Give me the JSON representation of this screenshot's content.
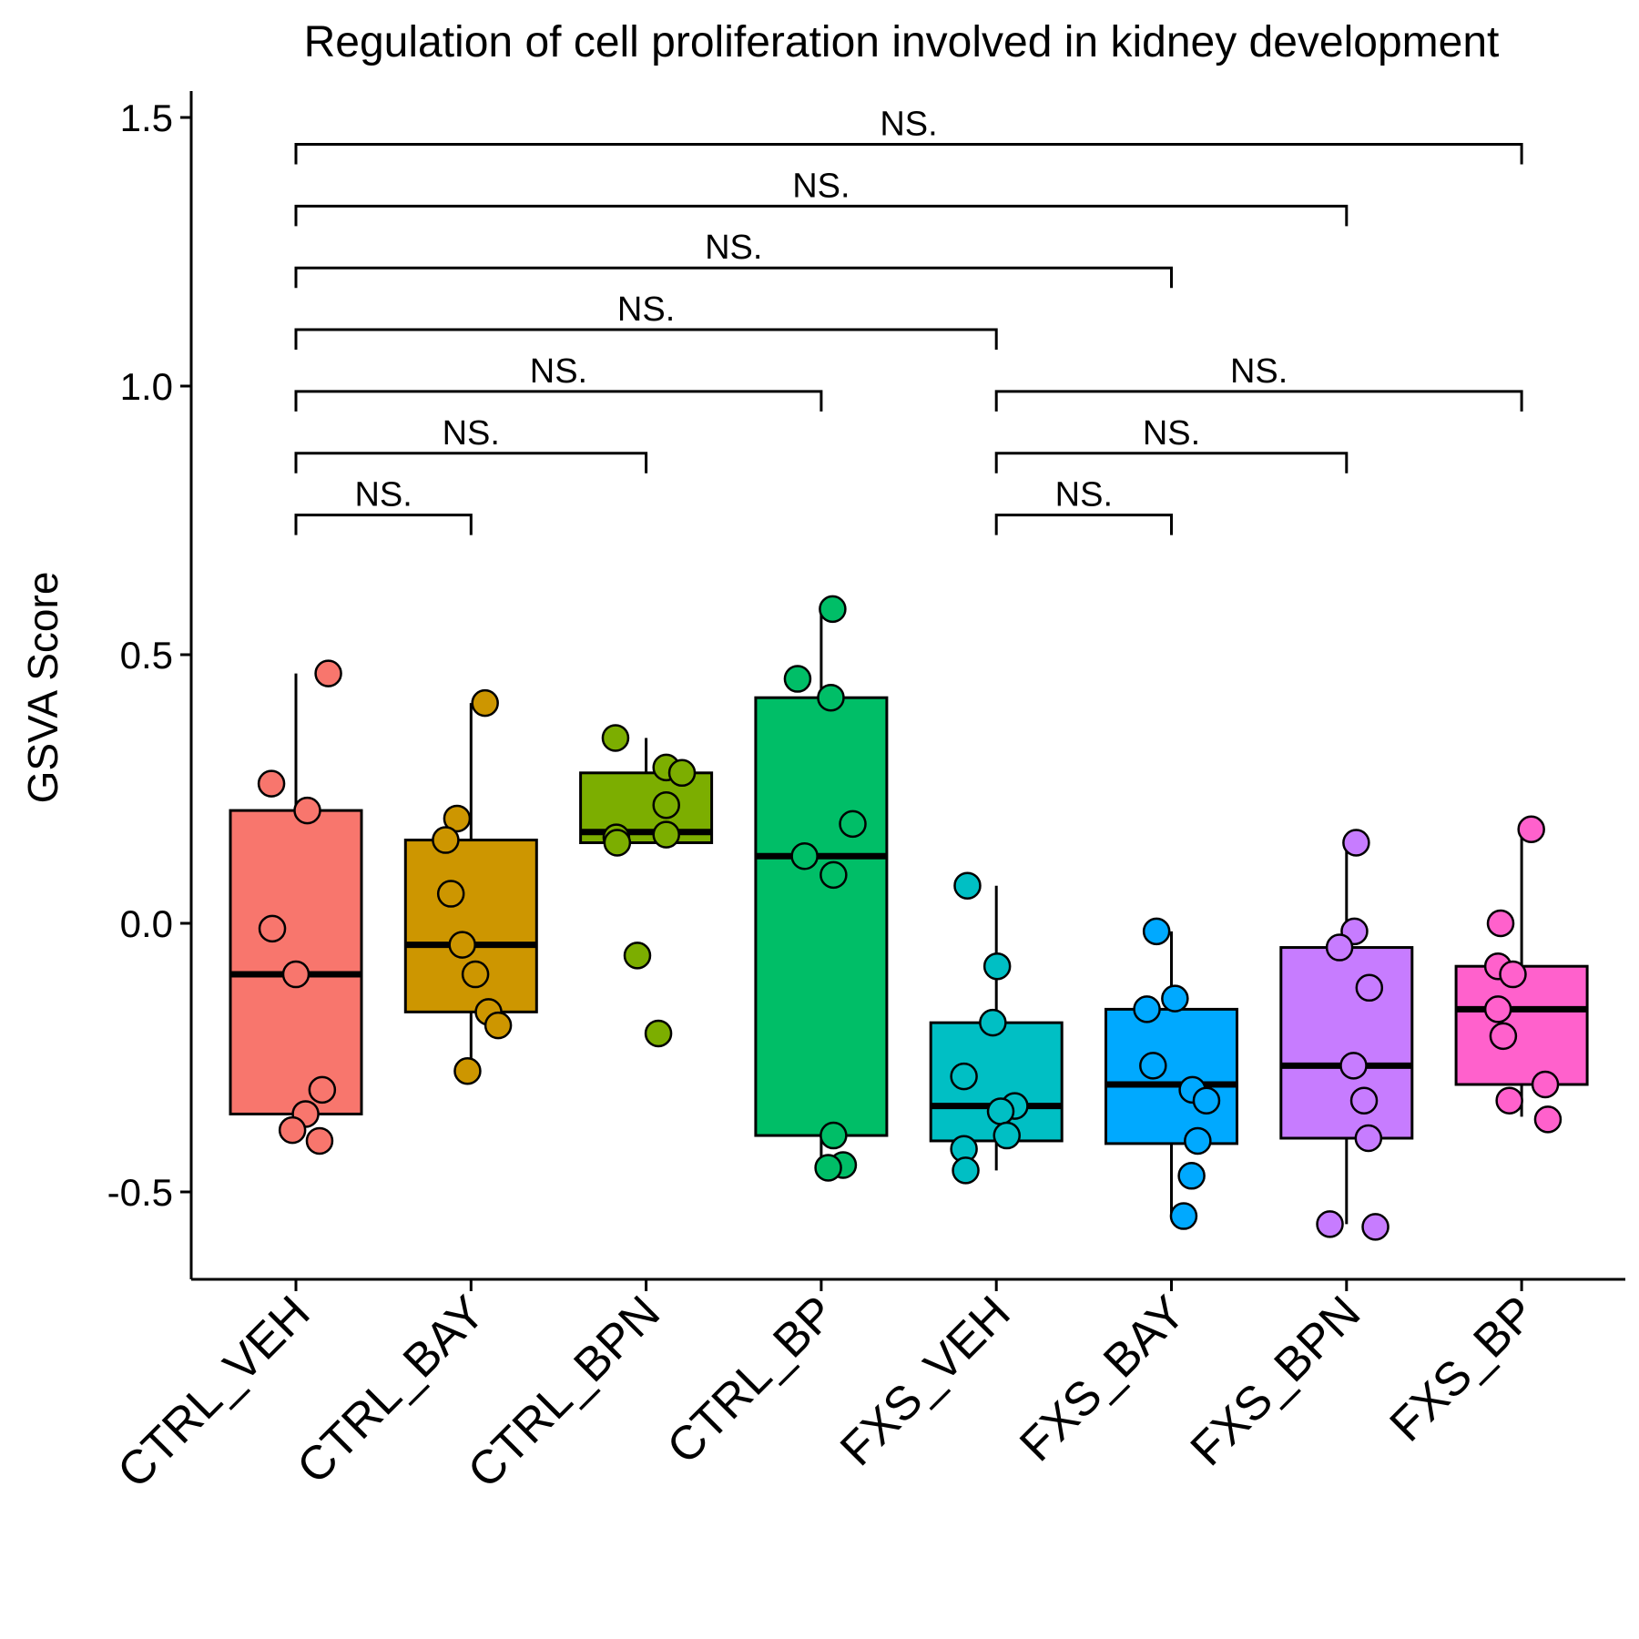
{
  "chart_data": {
    "type": "box",
    "title": "Regulation of cell proliferation involved in kidney development",
    "xlabel": "",
    "ylabel": "GSVA Score",
    "ylim": [
      -0.65,
      1.55
    ],
    "yticks": [
      -0.5,
      0.0,
      0.5,
      1.0,
      1.5
    ],
    "ytick_labels": [
      "-0.5",
      "0.0",
      "0.5",
      "1.0",
      "1.5"
    ],
    "grid": false,
    "legend": "none",
    "categories": [
      "CTRL_VEH",
      "CTRL_BAY",
      "CTRL_BPN",
      "CTRL_BP",
      "FXS_VEH",
      "FXS_BAY",
      "FXS_BPN",
      "FXS_BP"
    ],
    "colors": [
      "#F8766D",
      "#CD9600",
      "#7CAE00",
      "#00BE67",
      "#00BFC4",
      "#00A9FF",
      "#C77CFF",
      "#FF61CC"
    ],
    "boxes": [
      {
        "q1": -0.355,
        "median": -0.095,
        "q3": 0.21,
        "whisker_low": -0.355,
        "whisker_high": 0.465
      },
      {
        "q1": -0.165,
        "median": -0.04,
        "q3": 0.155,
        "whisker_low": -0.275,
        "whisker_high": 0.41
      },
      {
        "q1": 0.15,
        "median": 0.17,
        "q3": 0.28,
        "whisker_low": 0.15,
        "whisker_high": 0.345
      },
      {
        "q1": -0.395,
        "median": 0.125,
        "q3": 0.42,
        "whisker_low": -0.455,
        "whisker_high": 0.585
      },
      {
        "q1": -0.405,
        "median": -0.34,
        "q3": -0.185,
        "whisker_low": -0.46,
        "whisker_high": 0.07
      },
      {
        "q1": -0.41,
        "median": -0.3,
        "q3": -0.16,
        "whisker_low": -0.545,
        "whisker_high": -0.015
      },
      {
        "q1": -0.4,
        "median": -0.265,
        "q3": -0.045,
        "whisker_low": -0.56,
        "whisker_high": 0.15
      },
      {
        "q1": -0.3,
        "median": -0.16,
        "q3": -0.08,
        "whisker_low": -0.36,
        "whisker_high": 0.175
      }
    ],
    "points": [
      [
        [
          0.185,
          0.465
        ],
        [
          -0.14,
          0.26
        ],
        [
          0.065,
          0.21
        ],
        [
          -0.135,
          -0.01
        ],
        [
          0.0,
          -0.095
        ],
        [
          0.15,
          -0.31
        ],
        [
          0.055,
          -0.355
        ],
        [
          -0.02,
          -0.385
        ],
        [
          0.135,
          -0.405
        ]
      ],
      [
        [
          0.08,
          0.41
        ],
        [
          -0.08,
          0.195
        ],
        [
          -0.145,
          0.155
        ],
        [
          -0.115,
          0.055
        ],
        [
          -0.05,
          -0.04
        ],
        [
          0.025,
          -0.095
        ],
        [
          0.1,
          -0.165
        ],
        [
          0.155,
          -0.19
        ],
        [
          -0.02,
          -0.275
        ]
      ],
      [
        [
          -0.175,
          0.345
        ],
        [
          0.115,
          0.29
        ],
        [
          0.205,
          0.28
        ],
        [
          -0.17,
          0.16
        ],
        [
          0.115,
          0.22
        ],
        [
          0.115,
          0.165
        ],
        [
          -0.165,
          0.15
        ],
        [
          -0.05,
          -0.06
        ],
        [
          0.07,
          -0.205
        ]
      ],
      [
        [
          0.065,
          0.585
        ],
        [
          -0.135,
          0.455
        ],
        [
          0.055,
          0.42
        ],
        [
          0.18,
          0.185
        ],
        [
          -0.095,
          0.125
        ],
        [
          0.07,
          0.09
        ],
        [
          0.07,
          -0.395
        ],
        [
          0.125,
          -0.45
        ],
        [
          0.04,
          -0.455
        ]
      ],
      [
        [
          -0.165,
          0.07
        ],
        [
          0.005,
          -0.08
        ],
        [
          -0.02,
          -0.185
        ],
        [
          -0.185,
          -0.285
        ],
        [
          0.105,
          -0.34
        ],
        [
          0.025,
          -0.35
        ],
        [
          0.06,
          -0.395
        ],
        [
          -0.185,
          -0.42
        ],
        [
          -0.175,
          -0.46
        ]
      ],
      [
        [
          -0.085,
          -0.015
        ],
        [
          0.02,
          -0.14
        ],
        [
          -0.14,
          -0.16
        ],
        [
          -0.105,
          -0.265
        ],
        [
          0.12,
          -0.31
        ],
        [
          0.2,
          -0.33
        ],
        [
          0.15,
          -0.405
        ],
        [
          0.115,
          -0.47
        ],
        [
          0.07,
          -0.545
        ]
      ],
      [
        [
          0.055,
          0.15
        ],
        [
          0.045,
          -0.015
        ],
        [
          -0.04,
          -0.045
        ],
        [
          0.13,
          -0.12
        ],
        [
          0.04,
          -0.265
        ],
        [
          0.1,
          -0.33
        ],
        [
          0.125,
          -0.4
        ],
        [
          -0.095,
          -0.56
        ],
        [
          0.165,
          -0.565
        ]
      ],
      [
        [
          0.055,
          0.175
        ],
        [
          -0.12,
          0.0
        ],
        [
          -0.135,
          -0.08
        ],
        [
          -0.05,
          -0.095
        ],
        [
          -0.135,
          -0.16
        ],
        [
          -0.105,
          -0.21
        ],
        [
          0.135,
          -0.3
        ],
        [
          -0.07,
          -0.33
        ],
        [
          0.15,
          -0.365
        ]
      ]
    ],
    "comparisons": [
      {
        "from": "CTRL_VEH",
        "to": "CTRL_BAY",
        "y": 0.76,
        "label": "NS."
      },
      {
        "from": "CTRL_VEH",
        "to": "CTRL_BPN",
        "y": 0.875,
        "label": "NS."
      },
      {
        "from": "CTRL_VEH",
        "to": "CTRL_BP",
        "y": 0.99,
        "label": "NS."
      },
      {
        "from": "CTRL_VEH",
        "to": "FXS_VEH",
        "y": 1.105,
        "label": "NS."
      },
      {
        "from": "CTRL_VEH",
        "to": "FXS_BAY",
        "y": 1.22,
        "label": "NS."
      },
      {
        "from": "CTRL_VEH",
        "to": "FXS_BPN",
        "y": 1.335,
        "label": "NS."
      },
      {
        "from": "CTRL_VEH",
        "to": "FXS_BP",
        "y": 1.45,
        "label": "NS."
      },
      {
        "from": "FXS_VEH",
        "to": "FXS_BAY",
        "y": 0.76,
        "label": "NS."
      },
      {
        "from": "FXS_VEH",
        "to": "FXS_BPN",
        "y": 0.875,
        "label": "NS."
      },
      {
        "from": "FXS_VEH",
        "to": "FXS_BP",
        "y": 0.99,
        "label": "NS."
      }
    ]
  }
}
